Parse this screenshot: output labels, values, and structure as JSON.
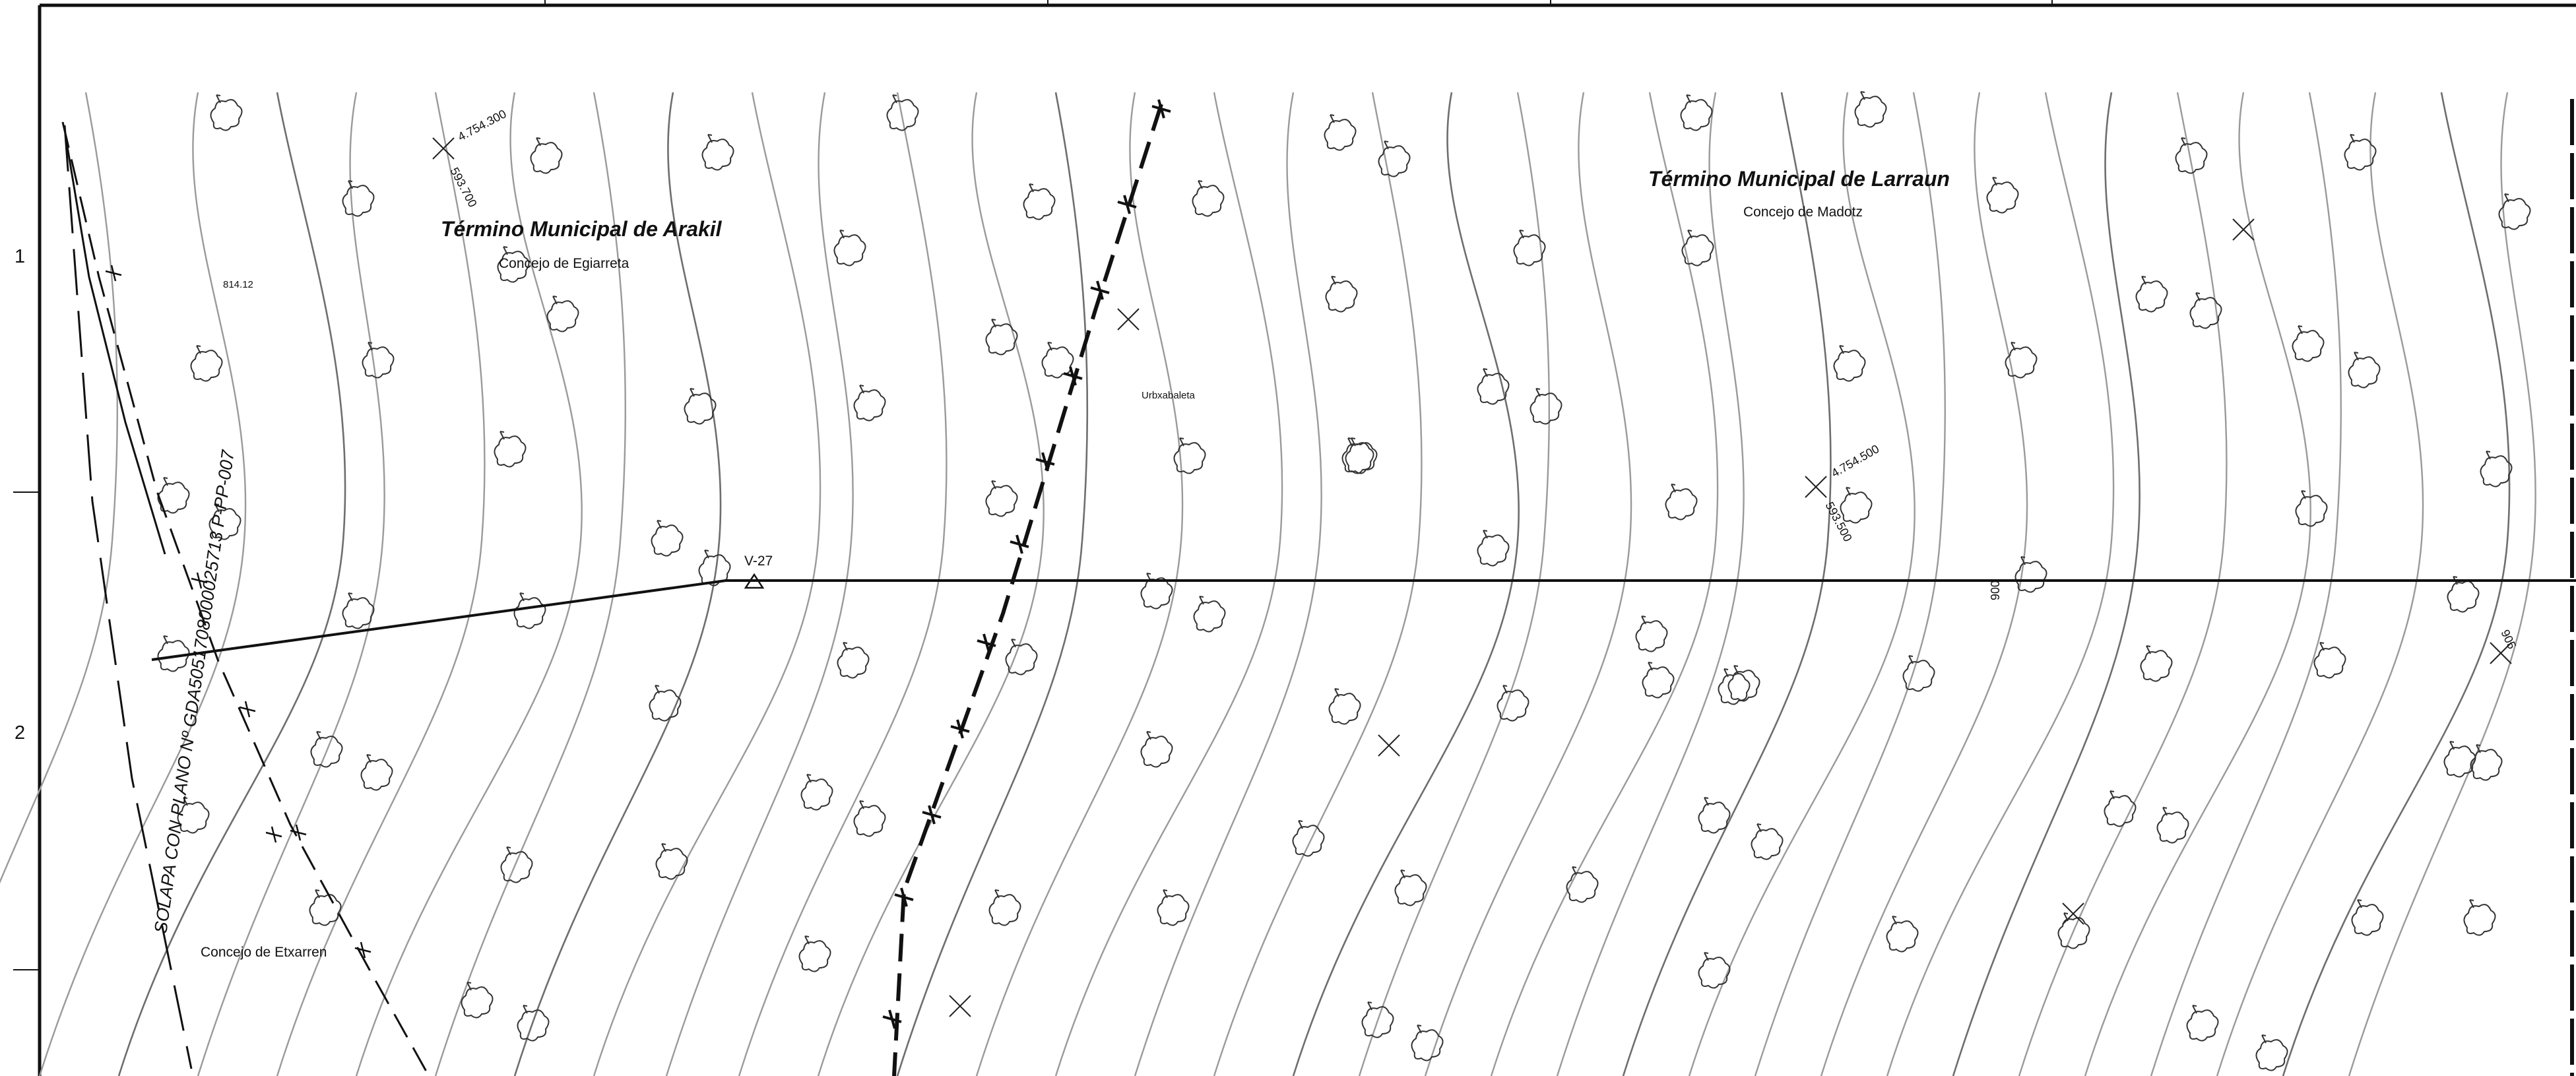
{
  "frame": {
    "row_labels": [
      "1",
      "2"
    ]
  },
  "municipalities": [
    {
      "title": "Término Municipal de Arakil",
      "subtitle": "Concejo de Egiarreta"
    },
    {
      "title": "Término Municipal de Larraun",
      "subtitle": "Concejo de Madotz"
    }
  ],
  "other_councils": [
    "Concejo de Etxarren"
  ],
  "place_names": [
    "Urbxabaleta"
  ],
  "spot_height": "814.12",
  "vertex": {
    "label": "V-27"
  },
  "grid_coordinates": [
    {
      "northing": "4.754.300",
      "easting": "593.700"
    },
    {
      "northing": "4.754.500",
      "easting": "593.500"
    }
  ],
  "contour_labels": [
    "900",
    "905"
  ],
  "overlap_note": "SOLAPA CON PLANO Nº GDA5051708000025713 P-PP-007",
  "colors": {
    "ink": "#111111",
    "contour": "#9a9a9a",
    "paper": "#ffffff"
  },
  "symbols": [
    "tree-icon",
    "grid-cross-icon",
    "triangulation-vertex-icon"
  ]
}
